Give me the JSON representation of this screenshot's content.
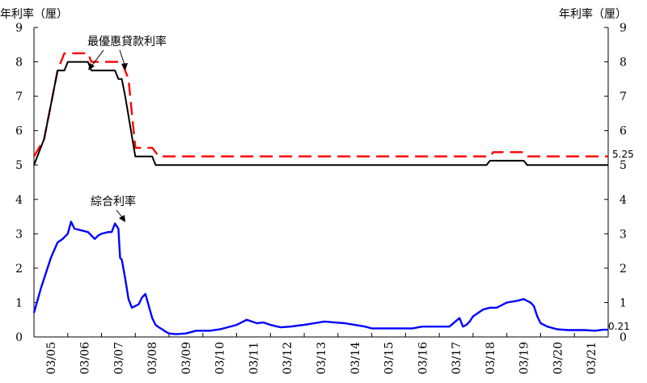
{
  "chart_data": {
    "type": "line",
    "y_unit_left": "年利率（厘）",
    "y_unit_right": "年利率（厘）",
    "ylim": [
      0,
      9
    ],
    "yticks": [
      0,
      1,
      2,
      3,
      4,
      5,
      6,
      7,
      8,
      9
    ],
    "xlim": [
      2005,
      2022
    ],
    "xtick_labels": [
      "03/05",
      "03/06",
      "03/07",
      "03/08",
      "03/09",
      "03/10",
      "03/11",
      "03/12",
      "03/13",
      "03/14",
      "03/15",
      "03/16",
      "03/17",
      "03/18",
      "03/19",
      "03/20",
      "03/21"
    ],
    "grid": false,
    "legend": "none",
    "series": [
      {
        "key": "prime_red",
        "color": "#ff0000",
        "style": "dashed",
        "x": [
          2005.0,
          2005.3,
          2005.5,
          2005.7,
          2005.9,
          2006.2,
          2006.6,
          2006.7,
          2007.0,
          2007.3,
          2007.6,
          2007.8,
          2007.9,
          2008.0,
          2008.5,
          2008.7,
          2009.0,
          2018.5,
          2018.6,
          2019.5,
          2019.6,
          2022.0
        ],
        "y": [
          5.25,
          5.75,
          6.75,
          7.75,
          8.25,
          8.25,
          8.25,
          8.0,
          8.0,
          8.0,
          8.0,
          7.5,
          6.5,
          5.5,
          5.5,
          5.25,
          5.25,
          5.25,
          5.375,
          5.375,
          5.25,
          5.25
        ]
      },
      {
        "key": "prime_black",
        "color": "#000000",
        "style": "solid",
        "x": [
          2005.0,
          2005.3,
          2005.5,
          2005.7,
          2005.9,
          2006.0,
          2006.6,
          2006.7,
          2007.0,
          2007.4,
          2007.5,
          2007.6,
          2007.7,
          2008.0,
          2008.5,
          2008.6,
          2009.0,
          2018.4,
          2018.5,
          2019.5,
          2019.6,
          2022.0
        ],
        "y": [
          5.0,
          5.75,
          6.75,
          7.75,
          7.75,
          8.0,
          8.0,
          7.75,
          7.75,
          7.75,
          7.5,
          7.5,
          7.0,
          5.25,
          5.25,
          5.0,
          5.0,
          5.0,
          5.125,
          5.125,
          5.0,
          5.0
        ]
      },
      {
        "key": "composite",
        "name": "綜合利率",
        "color": "#0000ff",
        "style": "solid",
        "x": [
          2005.0,
          2005.2,
          2005.5,
          2005.7,
          2005.85,
          2006.0,
          2006.1,
          2006.2,
          2006.4,
          2006.6,
          2006.7,
          2006.8,
          2006.9,
          2007.0,
          2007.2,
          2007.3,
          2007.4,
          2007.5,
          2007.55,
          2007.6,
          2007.7,
          2007.8,
          2007.9,
          2008.0,
          2008.1,
          2008.2,
          2008.3,
          2008.4,
          2008.5,
          2008.6,
          2008.7,
          2008.8,
          2008.9,
          2009.0,
          2009.2,
          2009.5,
          2009.8,
          2010.2,
          2010.5,
          2011.0,
          2011.3,
          2011.6,
          2011.8,
          2012.0,
          2012.3,
          2012.6,
          2012.8,
          2013.0,
          2013.3,
          2013.6,
          2013.9,
          2014.2,
          2014.5,
          2014.8,
          2015.0,
          2015.3,
          2015.6,
          2015.9,
          2016.2,
          2016.5,
          2016.8,
          2017.0,
          2017.3,
          2017.6,
          2017.7,
          2017.8,
          2017.9,
          2018.0,
          2018.3,
          2018.5,
          2018.7,
          2018.9,
          2019.0,
          2019.3,
          2019.5,
          2019.7,
          2019.8,
          2019.9,
          2020.0,
          2020.2,
          2020.5,
          2020.8,
          2021.0,
          2021.3,
          2021.6,
          2021.85,
          2021.95,
          2022.0
        ],
        "y": [
          0.7,
          1.4,
          2.3,
          2.75,
          2.85,
          3.0,
          3.35,
          3.15,
          3.1,
          3.05,
          2.95,
          2.85,
          2.95,
          3.0,
          3.05,
          3.05,
          3.3,
          3.15,
          2.3,
          2.25,
          1.7,
          1.1,
          0.85,
          0.9,
          0.95,
          1.15,
          1.25,
          0.9,
          0.55,
          0.35,
          0.28,
          0.22,
          0.15,
          0.1,
          0.08,
          0.1,
          0.18,
          0.18,
          0.22,
          0.35,
          0.5,
          0.4,
          0.42,
          0.35,
          0.28,
          0.3,
          0.33,
          0.35,
          0.4,
          0.45,
          0.42,
          0.4,
          0.35,
          0.3,
          0.25,
          0.25,
          0.25,
          0.25,
          0.25,
          0.3,
          0.3,
          0.3,
          0.3,
          0.55,
          0.3,
          0.35,
          0.45,
          0.6,
          0.8,
          0.85,
          0.85,
          0.95,
          1.0,
          1.05,
          1.1,
          1.0,
          0.9,
          0.6,
          0.4,
          0.3,
          0.22,
          0.2,
          0.2,
          0.2,
          0.18,
          0.21,
          0.21,
          0.21
        ]
      }
    ],
    "annotations": [
      {
        "text": "最優惠貸款利率"
      },
      {
        "text": "綜合利率"
      },
      {
        "text": "5.25"
      },
      {
        "text": "0.21"
      }
    ]
  }
}
